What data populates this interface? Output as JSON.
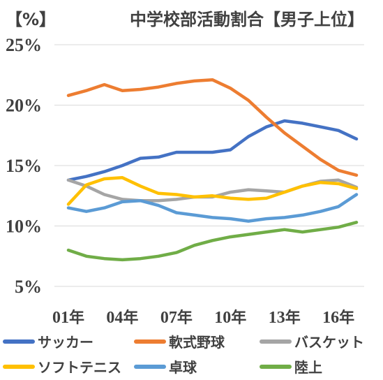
{
  "chart_data": {
    "type": "line",
    "title": "中学校部活動割合【男子上位】",
    "unit_label": "【%】",
    "x": [
      "01年",
      "02年",
      "03年",
      "04年",
      "05年",
      "06年",
      "07年",
      "08年",
      "09年",
      "10年",
      "11年",
      "12年",
      "13年",
      "14年",
      "15年",
      "16年",
      "17年"
    ],
    "x_tick_labels": [
      "01年",
      "04年",
      "07年",
      "10年",
      "13年",
      "16年"
    ],
    "y_tick_labels": [
      "5%",
      "10%",
      "15%",
      "20%",
      "25%"
    ],
    "y_ticks": [
      5,
      10,
      15,
      20,
      25
    ],
    "ylim": [
      5,
      25
    ],
    "grid": true,
    "legend_position": "bottom",
    "series": [
      {
        "name": "サッカー",
        "color": "#4472C4",
        "values": [
          13.8,
          14.1,
          14.5,
          15.0,
          15.6,
          15.7,
          16.1,
          16.1,
          16.1,
          16.3,
          17.4,
          18.2,
          18.7,
          18.5,
          18.2,
          17.9,
          17.2
        ]
      },
      {
        "name": "軟式野球",
        "color": "#ED7D31",
        "values": [
          20.8,
          21.2,
          21.7,
          21.2,
          21.3,
          21.5,
          21.8,
          22.0,
          22.1,
          21.4,
          20.4,
          19.0,
          17.7,
          16.6,
          15.5,
          14.6,
          14.2
        ]
      },
      {
        "name": "バスケット",
        "color": "#A5A5A5",
        "values": [
          13.8,
          13.3,
          12.6,
          12.2,
          12.1,
          12.1,
          12.2,
          12.4,
          12.4,
          12.8,
          13.0,
          12.9,
          12.8,
          13.3,
          13.7,
          13.8,
          13.2
        ]
      },
      {
        "name": "ソフトテニス",
        "color": "#FFC000",
        "values": [
          11.8,
          13.4,
          13.9,
          14.0,
          13.3,
          12.7,
          12.6,
          12.4,
          12.5,
          12.3,
          12.2,
          12.3,
          12.8,
          13.3,
          13.6,
          13.5,
          13.1
        ]
      },
      {
        "name": "卓球",
        "color": "#5B9BD5",
        "values": [
          11.5,
          11.2,
          11.5,
          12.0,
          12.1,
          11.7,
          11.1,
          10.9,
          10.7,
          10.6,
          10.4,
          10.6,
          10.7,
          10.9,
          11.2,
          11.6,
          12.6
        ]
      },
      {
        "name": "陸上",
        "color": "#70AD47",
        "values": [
          8.0,
          7.5,
          7.3,
          7.2,
          7.3,
          7.5,
          7.8,
          8.4,
          8.8,
          9.1,
          9.3,
          9.5,
          9.7,
          9.5,
          9.7,
          9.9,
          10.3
        ]
      }
    ]
  }
}
